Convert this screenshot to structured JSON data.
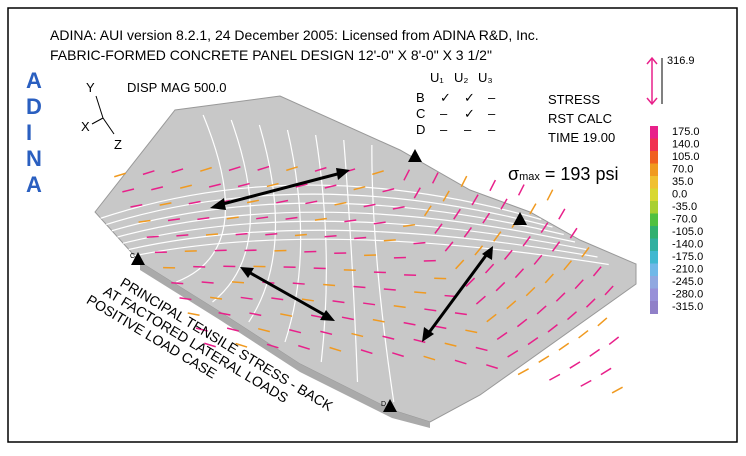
{
  "header": {
    "line1": "ADINA:  AUI version 8.2.1, 24 December 2005: Licensed from ADINA R&D, Inc.",
    "line2": "FABRIC-FORMED CONCRETE PANEL DESIGN 12'-0\" X 8'-0\" X 3 1/2\""
  },
  "logo": [
    "A",
    "D",
    "I",
    "N",
    "A"
  ],
  "axes": {
    "y": "Y",
    "x": "X",
    "z": "Z"
  },
  "disp_mag": "DISP MAG 500.0",
  "bc_table": {
    "columns": [
      "U₁",
      "U₂",
      "U₃"
    ],
    "rows": [
      [
        "B",
        "✓",
        "✓",
        "–"
      ],
      [
        "C",
        "–",
        "✓",
        "–"
      ],
      [
        "D",
        "–",
        "–",
        "–"
      ]
    ]
  },
  "result": {
    "lines": [
      "STRESS",
      "RST CALC",
      "TIME 19.00"
    ]
  },
  "sigma": {
    "symbol": "σ",
    "sub": "max",
    "text": " = 193 psi"
  },
  "scale_label": "316.9",
  "legend": {
    "labels": [
      "175.0",
      "140.0",
      "105.0",
      "70.0",
      "35.0",
      "0.0",
      "-35.0",
      "-70.0",
      "-105.0",
      "-140.0",
      "-175.0",
      "-210.0",
      "-245.0",
      "-280.0",
      "-315.0"
    ],
    "colors": [
      "#e8208a",
      "#f03050",
      "#f06020",
      "#f09a20",
      "#f0c030",
      "#d8d830",
      "#a8d030",
      "#50c040",
      "#30b070",
      "#30b0a0",
      "#40b8d0",
      "#70b8e8",
      "#90a8e0",
      "#9890d8",
      "#9080c8"
    ]
  },
  "nodes": [
    "C",
    "D"
  ],
  "caption": [
    "PRINCIPAL TENSILE STRESS - BACK",
    "AT FACTORED LATERAL LOADS",
    "POSITIVE LOAD CASE"
  ]
}
